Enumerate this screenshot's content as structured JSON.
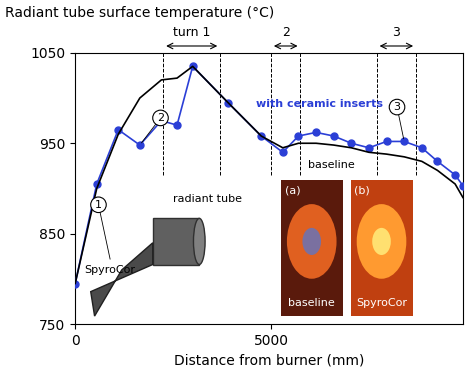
{
  "chart_data": {
    "type": "line",
    "title": "Radiant tube surface temperature (°C)",
    "x_label": "Distance from burner (mm)",
    "x": [
      0,
      550,
      1100,
      1650,
      2200,
      2600,
      3000,
      3900,
      4750,
      5300,
      5700,
      6150,
      6600,
      7050,
      7500,
      7950,
      8400,
      8850,
      9250,
      9700,
      9900
    ],
    "series": [
      {
        "name": "with ceramic inserts",
        "color": "#2b3fd6",
        "marker": "circle",
        "line_style": "solid",
        "values": [
          795,
          905,
          965,
          948,
          975,
          970,
          1035,
          995,
          958,
          940,
          958,
          962,
          958,
          950,
          945,
          952,
          952,
          945,
          930,
          915,
          903
        ]
      },
      {
        "name": "baseline",
        "color": "#000000",
        "marker": "none",
        "line_style": "solid",
        "values": [
          795,
          900,
          960,
          1000,
          1020,
          1022,
          1035,
          995,
          958,
          945,
          950,
          950,
          948,
          945,
          940,
          938,
          935,
          930,
          920,
          905,
          890
        ]
      }
    ],
    "regions": [
      {
        "label": "turn 1",
        "x": [
          2250,
          3700
        ]
      },
      {
        "label": "2",
        "x": [
          5000,
          5750
        ]
      },
      {
        "label": "3",
        "x": [
          7700,
          8700
        ]
      }
    ],
    "callouts": [
      "1",
      "2",
      "3"
    ],
    "annotations": [
      "SpyroCor",
      "radiant tube"
    ],
    "insets": [
      {
        "panel": "(a)",
        "caption": "baseline"
      },
      {
        "panel": "(b)",
        "caption": "SpyroCor"
      }
    ],
    "xlim": [
      0,
      9900
    ],
    "xticks": [
      0,
      5000
    ],
    "ylim": [
      750,
      1050
    ],
    "yticks": [
      750,
      850,
      950,
      1050
    ],
    "grid": false
  }
}
